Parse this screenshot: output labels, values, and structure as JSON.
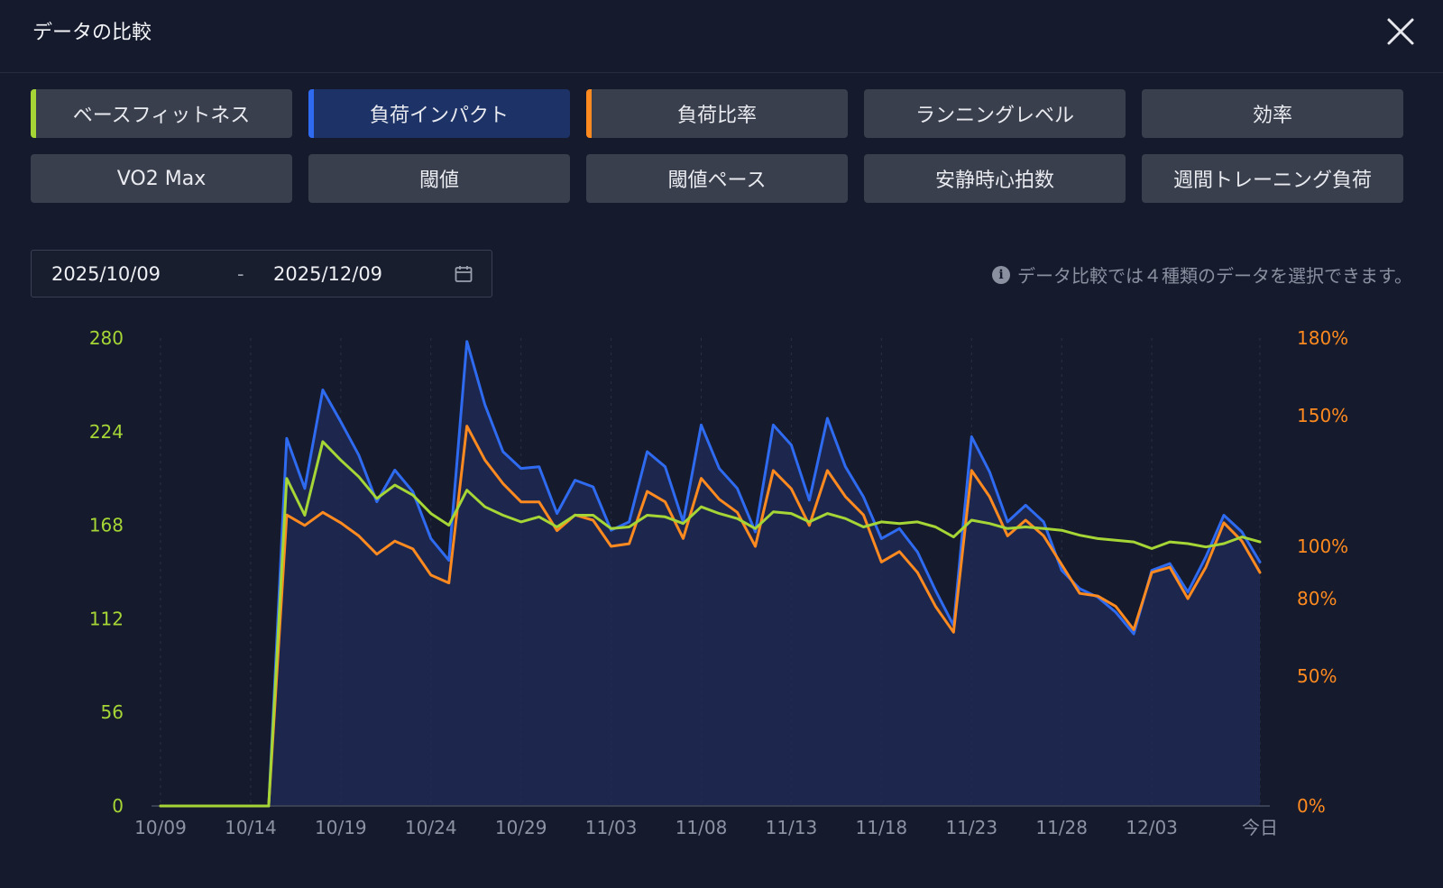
{
  "dialog": {
    "title": "データの比較",
    "close_icon": "close-icon"
  },
  "tabs": [
    {
      "label": "ベースフィットネス",
      "selected": true,
      "accent": "#a6d636"
    },
    {
      "label": "負荷インパクト",
      "selected": true,
      "accent": "#2f6bf0"
    },
    {
      "label": "負荷比率",
      "selected": true,
      "accent": "#ff8a1f"
    },
    {
      "label": "ランニングレベル",
      "selected": false,
      "accent": null
    },
    {
      "label": "効率",
      "selected": false,
      "accent": null
    },
    {
      "label": "VO2 Max",
      "selected": false,
      "accent": null
    },
    {
      "label": "閾値",
      "selected": false,
      "accent": null
    },
    {
      "label": "閾値ペース",
      "selected": false,
      "accent": null
    },
    {
      "label": "安静時心拍数",
      "selected": false,
      "accent": null
    },
    {
      "label": "週間トレーニング負荷",
      "selected": false,
      "accent": null
    }
  ],
  "date_range": {
    "start": "2025/10/09",
    "separator": "-",
    "end": "2025/12/09",
    "icon": "calendar-icon"
  },
  "note": {
    "icon": "info-icon",
    "text": "データ比較では４種類のデータを選択できます。"
  },
  "chart_data": {
    "type": "line",
    "grid": "vertical-dashed",
    "left_axis": {
      "ticks": [
        "0",
        "56",
        "112",
        "168",
        "224",
        "280"
      ],
      "range": [
        0,
        280
      ],
      "color": "#a6d636"
    },
    "right_axis": {
      "ticks": [
        "0%",
        "50%",
        "80%",
        "100%",
        "150%",
        "180%"
      ],
      "tick_values": [
        0,
        50,
        80,
        100,
        150,
        180
      ],
      "range": [
        0,
        180
      ],
      "color": "#ff8a1f"
    },
    "x_tick_labels": [
      "10/09",
      "10/14",
      "10/19",
      "10/24",
      "10/29",
      "11/03",
      "11/08",
      "11/13",
      "11/18",
      "11/23",
      "11/28",
      "12/03",
      "今日"
    ],
    "x_tick_days": [
      0,
      5,
      10,
      15,
      20,
      25,
      30,
      35,
      40,
      45,
      50,
      55,
      61
    ],
    "series": [
      {
        "name": "ベースフィットネス",
        "axis": "left",
        "color": "#a6d636",
        "values": [
          0,
          0,
          0,
          0,
          0,
          0,
          0,
          196,
          174,
          218,
          207,
          197,
          184,
          192,
          186,
          175,
          168,
          189,
          179,
          174,
          170,
          173,
          167,
          174,
          174,
          166,
          167,
          174,
          173,
          169,
          179,
          175,
          172,
          166,
          176,
          175,
          170,
          175,
          172,
          167,
          170,
          169,
          170,
          167,
          161,
          171,
          169,
          166,
          167,
          166,
          165,
          162,
          160,
          159,
          158,
          154,
          158,
          157,
          155,
          157,
          161,
          158
        ]
      },
      {
        "name": "負荷インパクト",
        "axis": "left",
        "color": "#2f6bf0",
        "area": true,
        "values": [
          0,
          0,
          0,
          0,
          0,
          0,
          0,
          220,
          190,
          249,
          230,
          210,
          182,
          201,
          188,
          160,
          147,
          278,
          240,
          212,
          202,
          203,
          175,
          195,
          191,
          165,
          170,
          212,
          203,
          170,
          228,
          202,
          190,
          164,
          228,
          216,
          183,
          232,
          203,
          185,
          160,
          166,
          152,
          129,
          108,
          221,
          200,
          170,
          180,
          170,
          141,
          130,
          125,
          116,
          103,
          141,
          145,
          128,
          149,
          174,
          164,
          146
        ]
      },
      {
        "name": "負荷比率",
        "axis": "right",
        "color": "#ff8a1f",
        "values": [
          0,
          0,
          0,
          0,
          0,
          0,
          0,
          112,
          108,
          113,
          109,
          104,
          97,
          102,
          99,
          89,
          86,
          146,
          133,
          124,
          117,
          117,
          106,
          112,
          110,
          100,
          101,
          121,
          117,
          103,
          126,
          118,
          113,
          100,
          129,
          122,
          108,
          129,
          119,
          112,
          94,
          98,
          90,
          77,
          67,
          129,
          119,
          104,
          110,
          104,
          93,
          82,
          81,
          77,
          68,
          90,
          92,
          80,
          92,
          109,
          102,
          90
        ]
      }
    ]
  }
}
